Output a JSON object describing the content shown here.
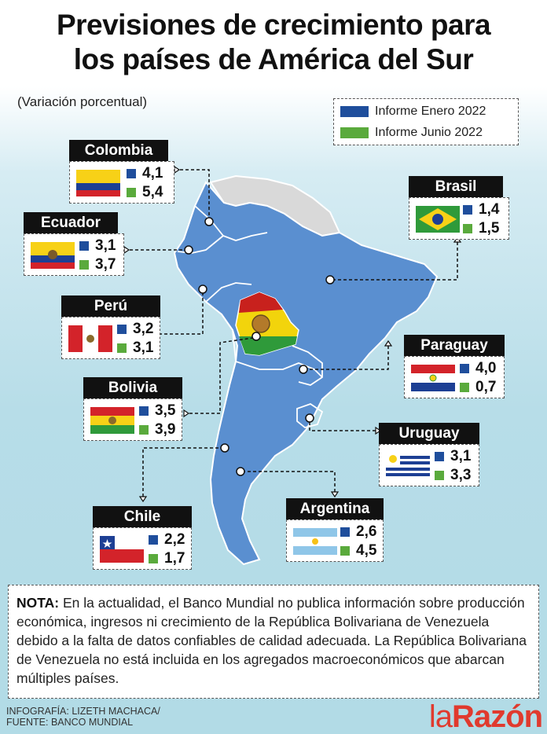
{
  "title": {
    "line1": "Previsiones de crecimiento para",
    "line2": "los países de América del Sur"
  },
  "subtitle": "(Variación porcentual)",
  "legend": {
    "items": [
      {
        "label": "Informe Enero 2022",
        "color": "#1f4e9c"
      },
      {
        "label": "Informe Junio 2022",
        "color": "#5aaa3c"
      }
    ]
  },
  "countries": [
    {
      "key": "colombia",
      "name": "Colombia",
      "enero": "4,1",
      "junio": "5,4"
    },
    {
      "key": "ecuador",
      "name": "Ecuador",
      "enero": "3,1",
      "junio": "3,7"
    },
    {
      "key": "peru",
      "name": "Perú",
      "enero": "3,2",
      "junio": "3,1"
    },
    {
      "key": "bolivia",
      "name": "Bolivia",
      "enero": "3,5",
      "junio": "3,9"
    },
    {
      "key": "chile",
      "name": "Chile",
      "enero": "2,2",
      "junio": "1,7"
    },
    {
      "key": "brasil",
      "name": "Brasil",
      "enero": "1,4",
      "junio": "1,5"
    },
    {
      "key": "paraguay",
      "name": "Paraguay",
      "enero": "4,0",
      "junio": "0,7"
    },
    {
      "key": "uruguay",
      "name": "Uruguay",
      "enero": "3,1",
      "junio": "3,3"
    },
    {
      "key": "argentina",
      "name": "Argentina",
      "enero": "2,6",
      "junio": "4,5"
    }
  ],
  "note": {
    "label": "NOTA:",
    "text": " En la actualidad, el Banco Mundial no publica información sobre producción económica, ingresos ni crecimiento de la República Bolivariana de Venezuela debido a la falta de datos confiables de calidad adecuada. La República Bolivariana de Venezuela no está incluida en los agregados macroeconómicos que abarcan múltiples países."
  },
  "credits": {
    "line1": "INFOGRAFÍA: LIZETH MACHACA/",
    "line2": "FUENTE: BANCO MUNDIAL"
  },
  "logo": {
    "part1": "la",
    "part2": "Razón"
  },
  "colors": {
    "map_fill": "#5a8fd0",
    "map_stroke": "#ffffff",
    "other_fill": "#d9d9d9",
    "bolivia_green": "#2f9a3a",
    "bolivia_red": "#c8211d",
    "bolivia_yellow": "#f2d40c"
  }
}
